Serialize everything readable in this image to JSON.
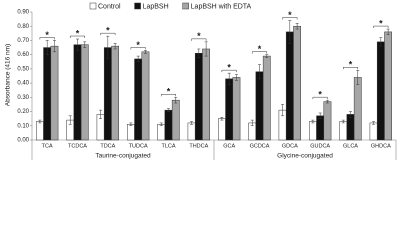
{
  "chart_data": {
    "type": "bar",
    "ylabel": "Absorbance (416 nm)",
    "categories": [
      "TCA",
      "TCDCA",
      "TDCA",
      "TUDCA",
      "TLCA",
      "THDCA",
      "GCA",
      "GCDCA",
      "GDCA",
      "GUDCA",
      "GLCA",
      "GHDCA"
    ],
    "series": [
      {
        "name": "Control",
        "color": "#ffffff",
        "values": [
          0.13,
          0.14,
          0.18,
          0.11,
          0.11,
          0.12,
          0.15,
          0.12,
          0.21,
          0.13,
          0.13,
          0.12
        ],
        "errors": [
          0.01,
          0.03,
          0.03,
          0.01,
          0.01,
          0.01,
          0.01,
          0.02,
          0.04,
          0.01,
          0.01,
          0.01
        ]
      },
      {
        "name": "LapBSH",
        "color": "#111111",
        "values": [
          0.65,
          0.67,
          0.65,
          0.57,
          0.21,
          0.61,
          0.43,
          0.48,
          0.76,
          0.17,
          0.18,
          0.69
        ],
        "errors": [
          0.05,
          0.04,
          0.08,
          0.02,
          0.01,
          0.03,
          0.04,
          0.05,
          0.08,
          0.02,
          0.02,
          0.03
        ]
      },
      {
        "name": "LapBSH with EDTA",
        "color": "#a6a6a6",
        "values": [
          0.66,
          0.67,
          0.66,
          0.62,
          0.28,
          0.64,
          0.44,
          0.59,
          0.8,
          0.27,
          0.44,
          0.76
        ],
        "errors": [
          0.04,
          0.02,
          0.02,
          0.01,
          0.02,
          0.05,
          0.02,
          0.01,
          0.02,
          0.01,
          0.05,
          0.02
        ]
      }
    ],
    "significance": [
      "*",
      "*",
      "*",
      "*",
      "*",
      "*",
      "*",
      "*",
      "*",
      "*",
      "*",
      "*"
    ],
    "groups": [
      {
        "label": "Taurine-conjugated",
        "categories": [
          "TCA",
          "TCDCA",
          "TDCA",
          "TUDCA",
          "TLCA",
          "THDCA"
        ]
      },
      {
        "label": "Glycine-conjugated",
        "categories": [
          "GCA",
          "GCDCA",
          "GDCA",
          "GUDCA",
          "GLCA",
          "GHDCA"
        ]
      }
    ],
    "ylim": [
      0,
      0.9
    ],
    "yticks": [
      {
        "value": 0,
        "label": "0.00"
      },
      {
        "value": 0.1,
        "label": "0.10"
      },
      {
        "value": 0.2,
        "label": "0.20"
      },
      {
        "value": 0.3,
        "label": "0.30"
      },
      {
        "value": 0.4,
        "label": "0.40"
      },
      {
        "value": 0.5,
        "label": "0.50"
      },
      {
        "value": 0.6,
        "label": "0.60"
      },
      {
        "value": 0.7,
        "label": "0.70"
      },
      {
        "value": 0.8,
        "label": "0.80"
      },
      {
        "value": 0.9,
        "label": "0.90"
      }
    ],
    "legend": "top"
  }
}
